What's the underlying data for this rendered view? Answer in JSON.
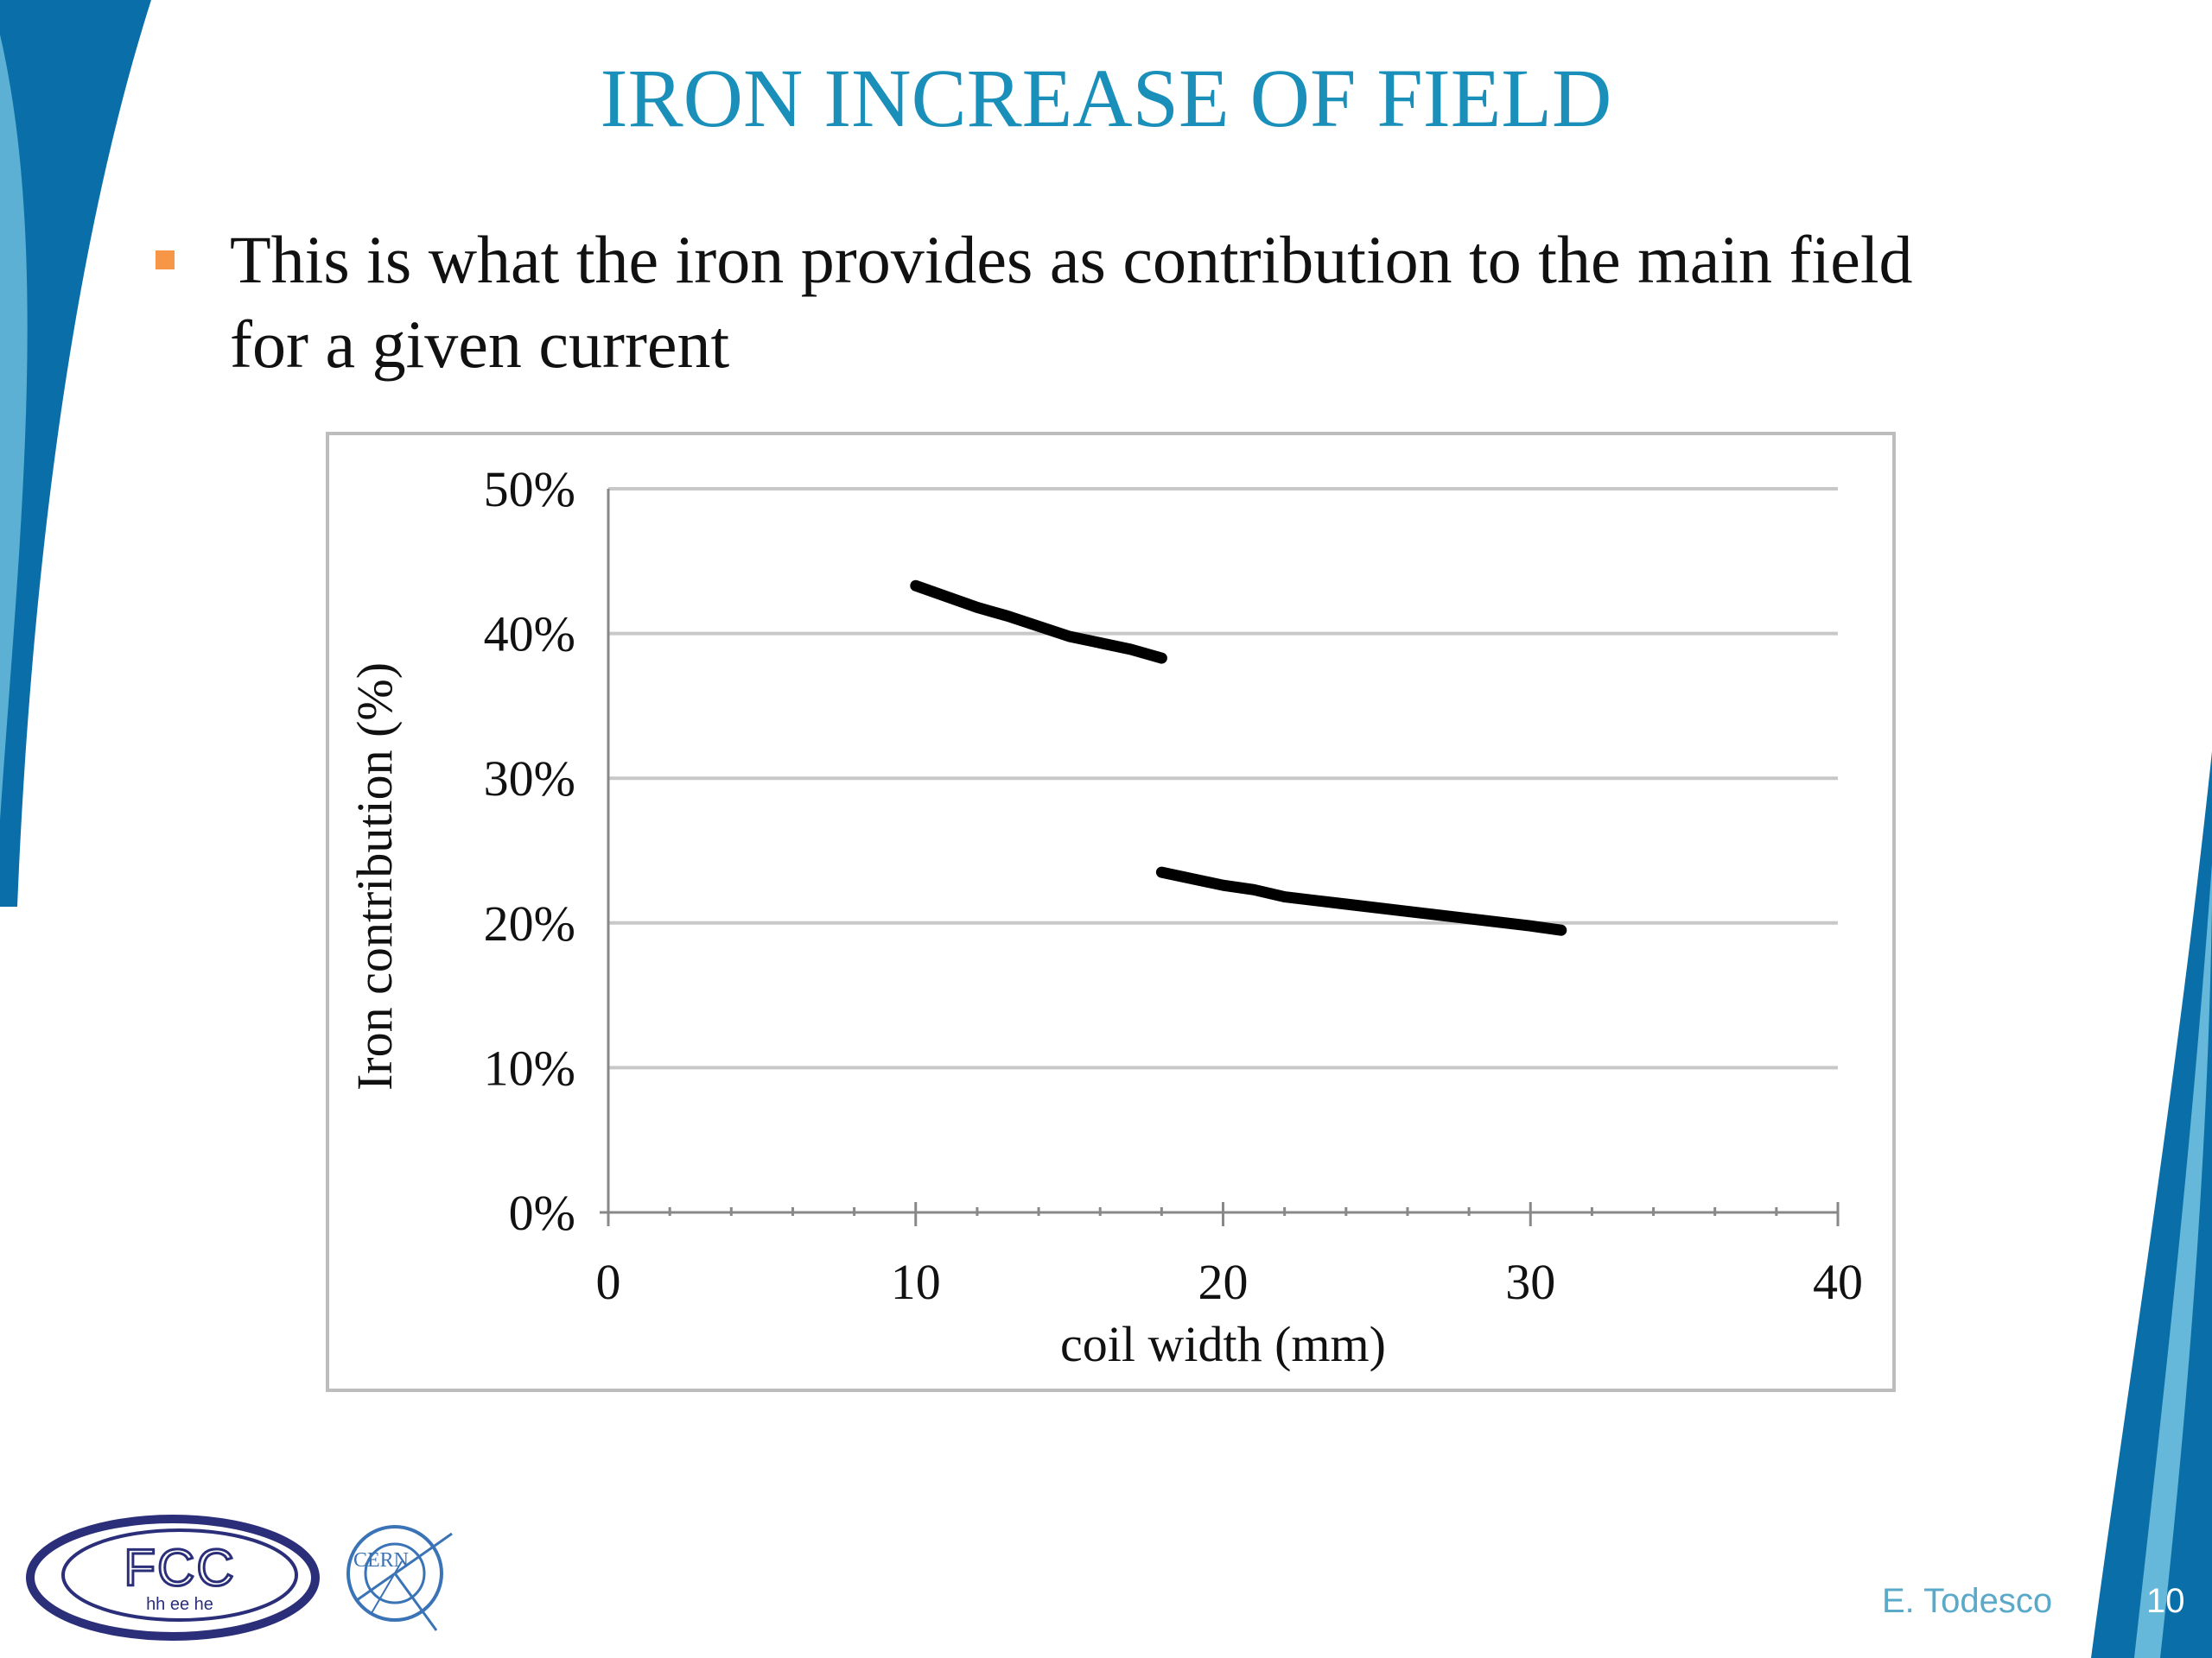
{
  "slide": {
    "title": "IRON INCREASE OF FIELD",
    "bullet": "This is what the iron provides as contribution to the main field for a given current",
    "author": "E. Todesco",
    "page_number": "10",
    "logos": {
      "fcc": "FCC hh ee he",
      "cern": "CERN"
    },
    "colors": {
      "title": "#1a8fb9",
      "bullet_marker": "#f79646",
      "deco_blue": "#0a6fa8",
      "deco_light": "#6fc0de"
    }
  },
  "chart_data": {
    "type": "line",
    "title": "",
    "xlabel": "coil width (mm)",
    "ylabel": "Iron contribution (%)",
    "xlim": [
      0,
      40
    ],
    "ylim": [
      0,
      50
    ],
    "x_ticks": [
      "0",
      "10",
      "20",
      "30",
      "40"
    ],
    "y_ticks": [
      "0%",
      "10%",
      "20%",
      "30%",
      "40%",
      "50%"
    ],
    "grid": true,
    "legend": "none",
    "series": [
      {
        "x": [
          10,
          12,
          13,
          15,
          17,
          18
        ],
        "y": [
          43.3,
          41.8,
          41.2,
          39.8,
          38.9,
          38.3
        ]
      },
      {
        "x": [
          18,
          20,
          21,
          22,
          24,
          26,
          28,
          30,
          31
        ],
        "y": [
          23.5,
          22.6,
          22.3,
          21.8,
          21.3,
          20.8,
          20.3,
          19.8,
          19.5
        ]
      }
    ]
  }
}
